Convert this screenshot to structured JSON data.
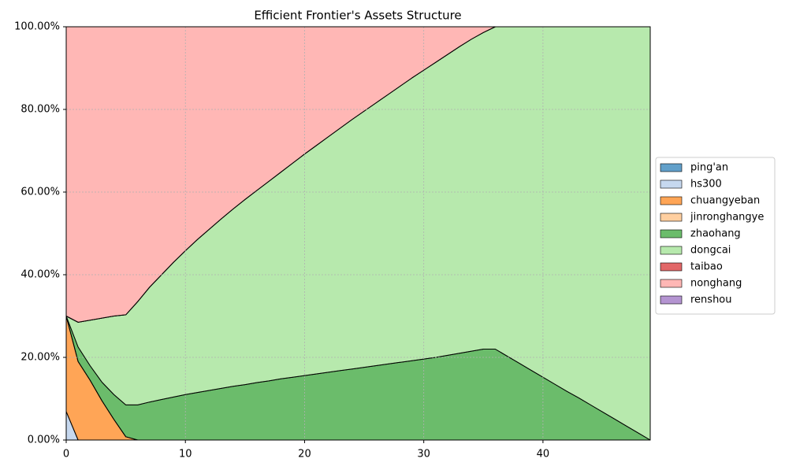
{
  "chart_data": {
    "type": "stacked_area",
    "title": "Efficient Frontier's Assets Structure",
    "x": [
      0,
      1,
      2,
      3,
      4,
      5,
      6,
      7,
      8,
      9,
      10,
      11,
      12,
      13,
      14,
      15,
      16,
      17,
      18,
      19,
      20,
      21,
      22,
      23,
      24,
      25,
      26,
      27,
      28,
      29,
      30,
      31,
      32,
      33,
      34,
      35,
      36,
      37,
      38,
      39,
      40,
      41,
      42,
      43,
      44,
      45,
      46,
      47,
      48,
      49
    ],
    "xlim": [
      0,
      49
    ],
    "xticks": [
      0,
      10,
      20,
      30,
      40
    ],
    "ylim": [
      0,
      100
    ],
    "yticks": [
      {
        "value": 0,
        "label": "0.00%"
      },
      {
        "value": 20,
        "label": "20.00%"
      },
      {
        "value": 40,
        "label": "40.00%"
      },
      {
        "value": 60,
        "label": "60.00%"
      },
      {
        "value": 80,
        "label": "80.00%"
      },
      {
        "value": 100,
        "label": "100.00%"
      }
    ],
    "grid": true,
    "legend": "right",
    "series": [
      {
        "name": "ping'an",
        "color": "#1f77b4",
        "values": [
          0,
          0,
          0,
          0,
          0,
          0,
          0,
          0,
          0,
          0,
          0,
          0,
          0,
          0,
          0,
          0,
          0,
          0,
          0,
          0,
          0,
          0,
          0,
          0,
          0,
          0,
          0,
          0,
          0,
          0,
          0,
          0,
          0,
          0,
          0,
          0,
          0,
          0,
          0,
          0,
          0,
          0,
          0,
          0,
          0,
          0,
          0,
          0,
          0,
          0
        ]
      },
      {
        "name": "hs300",
        "color": "#aec7e8",
        "values": [
          6.9,
          0,
          0,
          0,
          0,
          0,
          0,
          0,
          0,
          0,
          0,
          0,
          0,
          0,
          0,
          0,
          0,
          0,
          0,
          0,
          0,
          0,
          0,
          0,
          0,
          0,
          0,
          0,
          0,
          0,
          0,
          0,
          0,
          0,
          0,
          0,
          0,
          0,
          0,
          0,
          0,
          0,
          0,
          0,
          0,
          0,
          0,
          0,
          0,
          0
        ]
      },
      {
        "name": "chuangyeban",
        "color": "#ff7f0e",
        "values": [
          23.1,
          19,
          14.5,
          9.5,
          5,
          0.8,
          0,
          0,
          0,
          0,
          0,
          0,
          0,
          0,
          0,
          0,
          0,
          0,
          0,
          0,
          0,
          0,
          0,
          0,
          0,
          0,
          0,
          0,
          0,
          0,
          0,
          0,
          0,
          0,
          0,
          0,
          0,
          0,
          0,
          0,
          0,
          0,
          0,
          0,
          0,
          0,
          0,
          0,
          0,
          0
        ]
      },
      {
        "name": "jinronghangye",
        "color": "#ffbb78",
        "values": [
          0,
          0,
          0,
          0,
          0,
          0,
          0,
          0,
          0,
          0,
          0,
          0,
          0,
          0,
          0,
          0,
          0,
          0,
          0,
          0,
          0,
          0,
          0,
          0,
          0,
          0,
          0,
          0,
          0,
          0,
          0,
          0,
          0,
          0,
          0,
          0,
          0,
          0,
          0,
          0,
          0,
          0,
          0,
          0,
          0,
          0,
          0,
          0,
          0,
          0
        ]
      },
      {
        "name": "zhaohang",
        "color": "#2ca02c",
        "values": [
          0,
          3.5,
          3.5,
          4.5,
          6,
          7.7,
          8.5,
          9.2,
          9.8,
          10.4,
          11,
          11.5,
          12,
          12.5,
          13,
          13.4,
          13.9,
          14.3,
          14.8,
          15.2,
          15.6,
          16,
          16.4,
          16.8,
          17.2,
          17.6,
          18,
          18.4,
          18.8,
          19.2,
          19.6,
          20,
          20.5,
          21,
          21.5,
          22,
          22,
          20.3,
          18.6,
          16.9,
          15.2,
          13.5,
          11.8,
          10.2,
          8.5,
          6.8,
          5.1,
          3.4,
          1.7,
          0
        ]
      },
      {
        "name": "dongcai",
        "color": "#98df8a",
        "values": [
          0,
          6,
          11,
          15.5,
          19,
          21.8,
          25,
          27.8,
          30.2,
          32.6,
          34.8,
          37,
          39,
          41,
          42.9,
          44.8,
          46.5,
          48.3,
          50,
          51.8,
          53.6,
          55.3,
          57,
          58.7,
          60.4,
          62,
          63.6,
          65.2,
          66.8,
          68.4,
          69.9,
          71.4,
          72.8,
          74.2,
          75.5,
          76.6,
          78,
          79.7,
          81.4,
          83.1,
          84.8,
          86.5,
          88.2,
          89.8,
          91.5,
          93.2,
          94.9,
          96.6,
          98.3,
          100
        ]
      },
      {
        "name": "taibao",
        "color": "#d62728",
        "values": [
          0,
          0,
          0,
          0,
          0,
          0,
          0,
          0,
          0,
          0,
          0,
          0,
          0,
          0,
          0,
          0,
          0,
          0,
          0,
          0,
          0,
          0,
          0,
          0,
          0,
          0,
          0,
          0,
          0,
          0,
          0,
          0,
          0,
          0,
          0,
          0,
          0,
          0,
          0,
          0,
          0,
          0,
          0,
          0,
          0,
          0,
          0,
          0,
          0,
          0
        ]
      },
      {
        "name": "nonghang",
        "color": "#ff9896",
        "values": [
          70,
          71.5,
          71,
          70.5,
          70,
          69.7,
          66.5,
          63,
          60,
          57,
          54.2,
          51.5,
          49,
          46.5,
          44.1,
          41.8,
          39.6,
          37.4,
          35.2,
          33,
          30.8,
          28.7,
          26.6,
          24.5,
          22.4,
          20.4,
          18.4,
          16.4,
          14.4,
          12.4,
          10.5,
          8.6,
          6.7,
          4.8,
          3,
          1.4,
          0,
          0,
          0,
          0,
          0,
          0,
          0,
          0,
          0,
          0,
          0,
          0,
          0,
          0
        ]
      },
      {
        "name": "renshou",
        "color": "#9467bd",
        "values": [
          0,
          0,
          0,
          0,
          0,
          0,
          0,
          0,
          0,
          0,
          0,
          0,
          0,
          0,
          0,
          0,
          0,
          0,
          0,
          0,
          0,
          0,
          0,
          0,
          0,
          0,
          0,
          0,
          0,
          0,
          0,
          0,
          0,
          0,
          0,
          0,
          0,
          0,
          0,
          0,
          0,
          0,
          0,
          0,
          0,
          0,
          0,
          0,
          0,
          0
        ]
      }
    ]
  }
}
